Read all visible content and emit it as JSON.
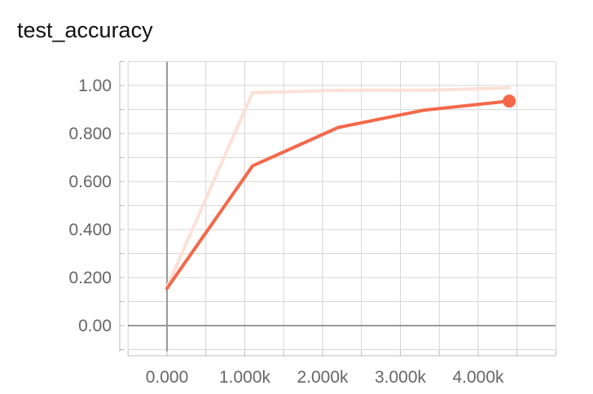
{
  "title": "test_accuracy",
  "chart_data": {
    "type": "line",
    "title": "test_accuracy",
    "xlabel": "",
    "ylabel": "",
    "xlim": [
      -1000,
      10000
    ],
    "ylim": [
      -0.1,
      1.1
    ],
    "x_ticks": [
      0,
      1000,
      2000,
      3000,
      4000
    ],
    "x_tick_labels": [
      "0.000",
      "1.000k",
      "2.000k",
      "3.000k",
      "4.000k"
    ],
    "y_ticks": [
      0,
      0.2,
      0.4,
      0.6,
      0.8,
      1.0
    ],
    "y_tick_labels": [
      "0.00",
      "0.200",
      "0.400",
      "0.600",
      "0.800",
      "1.00"
    ],
    "grid": true,
    "series": [
      {
        "role": "raw",
        "color": "#fde0d7",
        "x": [
          0,
          1100,
          2200,
          3300,
          4400
        ],
        "y": [
          0.16,
          0.97,
          0.98,
          0.98,
          0.99
        ]
      },
      {
        "role": "smoothed",
        "color": "#f4684a",
        "x": [
          0,
          1100,
          2200,
          3300,
          4400
        ],
        "y": [
          0.155,
          0.665,
          0.825,
          0.897,
          0.935
        ]
      }
    ],
    "highlight_point": {
      "x": 4400,
      "y": 0.935,
      "color": "#f4684a"
    }
  }
}
